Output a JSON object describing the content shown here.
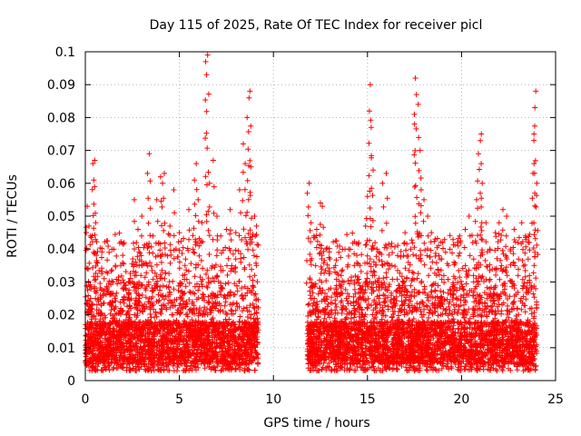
{
  "chart_data": {
    "type": "scatter",
    "title": "Day 115 of 2025, Rate Of TEC Index for receiver picl",
    "xlabel": "GPS time / hours",
    "ylabel": "ROTI / TECUs",
    "xlim": [
      0,
      25
    ],
    "ylim": [
      0,
      0.1
    ],
    "xticks": [
      0,
      5,
      10,
      15,
      20,
      25
    ],
    "xtick_labels": [
      "0",
      "5",
      "10",
      "15",
      "20",
      "25"
    ],
    "yticks": [
      0,
      0.01,
      0.02,
      0.03,
      0.04,
      0.05,
      0.06,
      0.07,
      0.08,
      0.09,
      0.1
    ],
    "ytick_labels": [
      "0",
      "0.01",
      "0.02",
      "0.03",
      "0.04",
      "0.05",
      "0.06",
      "0.07",
      "0.08",
      "0.09",
      "0.1"
    ],
    "grid": true,
    "marker": "+",
    "color": "#ff0000",
    "series": [
      {
        "name": "ROTI",
        "points": [
          [
            0.05,
            0.045
          ],
          [
            0.1,
            0.053
          ],
          [
            0.15,
            0.034
          ],
          [
            0.2,
            0.047
          ],
          [
            0.3,
            0.022
          ],
          [
            0.4,
            0.066
          ],
          [
            0.45,
            0.061
          ],
          [
            0.5,
            0.067
          ],
          [
            0.55,
            0.048
          ],
          [
            0.6,
            0.036
          ],
          [
            0.8,
            0.026
          ],
          [
            1.0,
            0.031
          ],
          [
            1.3,
            0.023
          ],
          [
            1.6,
            0.035
          ],
          [
            2.0,
            0.028
          ],
          [
            2.3,
            0.03
          ],
          [
            2.6,
            0.055
          ],
          [
            2.8,
            0.046
          ],
          [
            3.0,
            0.05
          ],
          [
            3.3,
            0.063
          ],
          [
            3.4,
            0.069
          ],
          [
            3.6,
            0.044
          ],
          [
            3.8,
            0.055
          ],
          [
            4.0,
            0.062
          ],
          [
            4.1,
            0.06
          ],
          [
            4.2,
            0.063
          ],
          [
            4.5,
            0.047
          ],
          [
            4.7,
            0.058
          ],
          [
            5.0,
            0.045
          ],
          [
            5.3,
            0.035
          ],
          [
            5.5,
            0.052
          ],
          [
            5.8,
            0.061
          ],
          [
            5.9,
            0.066
          ],
          [
            6.0,
            0.055
          ],
          [
            6.2,
            0.048
          ],
          [
            6.4,
            0.097
          ],
          [
            6.45,
            0.093
          ],
          [
            6.5,
            0.099
          ],
          [
            6.6,
            0.06
          ],
          [
            6.8,
            0.067
          ],
          [
            7.0,
            0.05
          ],
          [
            7.2,
            0.044
          ],
          [
            7.5,
            0.046
          ],
          [
            7.7,
            0.052
          ],
          [
            8.0,
            0.045
          ],
          [
            8.2,
            0.058
          ],
          [
            8.4,
            0.072
          ],
          [
            8.5,
            0.066
          ],
          [
            8.6,
            0.08
          ],
          [
            8.7,
            0.086
          ],
          [
            8.75,
            0.088
          ],
          [
            8.8,
            0.065
          ],
          [
            9.0,
            0.05
          ],
          [
            9.1,
            0.047
          ],
          [
            11.8,
            0.057
          ],
          [
            11.9,
            0.06
          ],
          [
            12.0,
            0.048
          ],
          [
            12.3,
            0.046
          ],
          [
            12.5,
            0.054
          ],
          [
            12.6,
            0.053
          ],
          [
            12.8,
            0.04
          ],
          [
            13.0,
            0.037
          ],
          [
            13.3,
            0.035
          ],
          [
            13.6,
            0.032
          ],
          [
            14.0,
            0.04
          ],
          [
            14.3,
            0.03
          ],
          [
            14.6,
            0.035
          ],
          [
            14.9,
            0.047
          ],
          [
            15.0,
            0.056
          ],
          [
            15.1,
            0.082
          ],
          [
            15.15,
            0.09
          ],
          [
            15.2,
            0.077
          ],
          [
            15.3,
            0.064
          ],
          [
            15.5,
            0.04
          ],
          [
            15.8,
            0.06
          ],
          [
            16.0,
            0.063
          ],
          [
            16.3,
            0.035
          ],
          [
            16.6,
            0.038
          ],
          [
            17.0,
            0.045
          ],
          [
            17.3,
            0.04
          ],
          [
            17.5,
            0.078
          ],
          [
            17.55,
            0.092
          ],
          [
            17.6,
            0.087
          ],
          [
            17.7,
            0.084
          ],
          [
            17.8,
            0.07
          ],
          [
            17.85,
            0.058
          ],
          [
            18.0,
            0.055
          ],
          [
            18.2,
            0.05
          ],
          [
            18.4,
            0.045
          ],
          [
            18.6,
            0.043
          ],
          [
            18.8,
            0.038
          ],
          [
            19.0,
            0.042
          ],
          [
            19.3,
            0.035
          ],
          [
            19.6,
            0.036
          ],
          [
            19.9,
            0.044
          ],
          [
            20.2,
            0.046
          ],
          [
            20.4,
            0.05
          ],
          [
            20.6,
            0.042
          ],
          [
            20.8,
            0.055
          ],
          [
            20.9,
            0.069
          ],
          [
            21.0,
            0.073
          ],
          [
            21.05,
            0.075
          ],
          [
            21.1,
            0.06
          ],
          [
            21.3,
            0.048
          ],
          [
            21.5,
            0.04
          ],
          [
            21.8,
            0.045
          ],
          [
            22.0,
            0.048
          ],
          [
            22.2,
            0.052
          ],
          [
            22.4,
            0.05
          ],
          [
            22.6,
            0.04
          ],
          [
            22.8,
            0.046
          ],
          [
            23.0,
            0.042
          ],
          [
            23.2,
            0.048
          ],
          [
            23.4,
            0.044
          ],
          [
            23.6,
            0.042
          ],
          [
            23.8,
            0.063
          ],
          [
            23.85,
            0.075
          ],
          [
            23.9,
            0.083
          ],
          [
            23.95,
            0.088
          ],
          [
            24.0,
            0.06
          ]
        ],
        "dense_band": {
          "segments": [
            [
              0,
              9.2
            ],
            [
              11.8,
              24.0
            ]
          ],
          "typical_range": [
            0.003,
            0.03
          ],
          "core_range": [
            0.005,
            0.018
          ]
        }
      }
    ]
  }
}
